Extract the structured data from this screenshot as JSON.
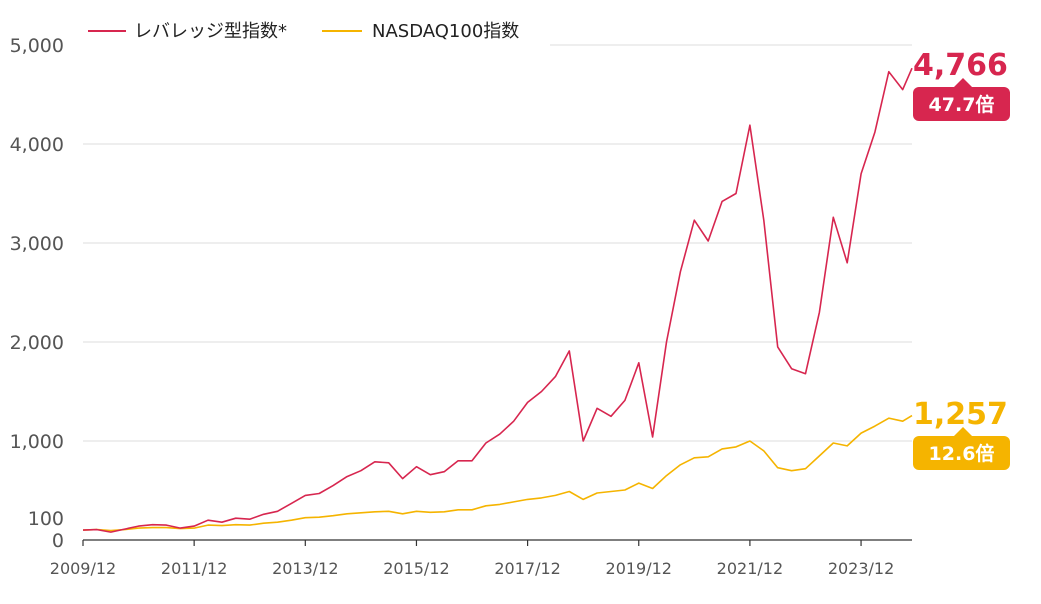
{
  "chart_data": {
    "type": "line",
    "x_start": "2009/12",
    "x_ticks": [
      "2009/12",
      "2011/12",
      "2013/12",
      "2015/12",
      "2017/12",
      "2019/12",
      "2021/12",
      "2023/12"
    ],
    "y_ticks": [
      0,
      100,
      1000,
      2000,
      3000,
      4000,
      5000
    ],
    "y_tick_labels": [
      "0",
      "100",
      "1,000",
      "2,000",
      "3,000",
      "4,000",
      "5,000"
    ],
    "ylim": [
      0,
      5000
    ],
    "grid": "horizontal",
    "legend": "top-left",
    "series": [
      {
        "name": "レバレッジ型指数*",
        "color": "#d7264f",
        "end_label": "4,766",
        "multiple_label": "47.7倍",
        "points": [
          [
            "2009/12",
            100
          ],
          [
            "2010/03",
            105
          ],
          [
            "2010/06",
            80
          ],
          [
            "2010/09",
            110
          ],
          [
            "2010/12",
            140
          ],
          [
            "2011/03",
            155
          ],
          [
            "2011/06",
            150
          ],
          [
            "2011/09",
            120
          ],
          [
            "2011/12",
            140
          ],
          [
            "2012/03",
            200
          ],
          [
            "2012/06",
            180
          ],
          [
            "2012/09",
            220
          ],
          [
            "2012/12",
            210
          ],
          [
            "2013/03",
            260
          ],
          [
            "2013/06",
            290
          ],
          [
            "2013/09",
            370
          ],
          [
            "2013/12",
            450
          ],
          [
            "2014/03",
            470
          ],
          [
            "2014/06",
            550
          ],
          [
            "2014/09",
            640
          ],
          [
            "2014/12",
            700
          ],
          [
            "2015/03",
            790
          ],
          [
            "2015/06",
            780
          ],
          [
            "2015/09",
            620
          ],
          [
            "2015/12",
            740
          ],
          [
            "2016/03",
            660
          ],
          [
            "2016/06",
            690
          ],
          [
            "2016/09",
            800
          ],
          [
            "2016/12",
            800
          ],
          [
            "2017/03",
            980
          ],
          [
            "2017/06",
            1070
          ],
          [
            "2017/09",
            1200
          ],
          [
            "2017/12",
            1390
          ],
          [
            "2018/03",
            1500
          ],
          [
            "2018/06",
            1650
          ],
          [
            "2018/09",
            1910
          ],
          [
            "2018/12",
            1000
          ],
          [
            "2019/03",
            1330
          ],
          [
            "2019/06",
            1250
          ],
          [
            "2019/09",
            1410
          ],
          [
            "2019/12",
            1790
          ],
          [
            "2020/03",
            1040
          ],
          [
            "2020/06",
            2000
          ],
          [
            "2020/09",
            2710
          ],
          [
            "2020/12",
            3230
          ],
          [
            "2021/03",
            3020
          ],
          [
            "2021/06",
            3420
          ],
          [
            "2021/09",
            3500
          ],
          [
            "2021/12",
            4190
          ],
          [
            "2022/03",
            3230
          ],
          [
            "2022/06",
            1950
          ],
          [
            "2022/09",
            1730
          ],
          [
            "2022/12",
            1680
          ],
          [
            "2023/03",
            2300
          ],
          [
            "2023/06",
            3260
          ],
          [
            "2023/09",
            2800
          ],
          [
            "2023/12",
            3700
          ],
          [
            "2024/03",
            4120
          ],
          [
            "2024/06",
            4730
          ],
          [
            "2024/09",
            4550
          ],
          [
            "2024/11",
            4766
          ]
        ]
      },
      {
        "name": "NASDAQ100指数",
        "color": "#f5b400",
        "end_label": "1,257",
        "multiple_label": "12.6倍",
        "points": [
          [
            "2009/12",
            100
          ],
          [
            "2010/03",
            105
          ],
          [
            "2010/06",
            95
          ],
          [
            "2010/09",
            105
          ],
          [
            "2010/12",
            120
          ],
          [
            "2011/03",
            125
          ],
          [
            "2011/06",
            125
          ],
          [
            "2011/09",
            115
          ],
          [
            "2011/12",
            120
          ],
          [
            "2012/03",
            150
          ],
          [
            "2012/06",
            145
          ],
          [
            "2012/09",
            155
          ],
          [
            "2012/12",
            150
          ],
          [
            "2013/03",
            170
          ],
          [
            "2013/06",
            180
          ],
          [
            "2013/09",
            200
          ],
          [
            "2013/12",
            225
          ],
          [
            "2014/03",
            230
          ],
          [
            "2014/06",
            245
          ],
          [
            "2014/09",
            265
          ],
          [
            "2014/12",
            275
          ],
          [
            "2015/03",
            285
          ],
          [
            "2015/06",
            290
          ],
          [
            "2015/09",
            265
          ],
          [
            "2015/12",
            290
          ],
          [
            "2016/03",
            280
          ],
          [
            "2016/06",
            285
          ],
          [
            "2016/09",
            305
          ],
          [
            "2016/12",
            305
          ],
          [
            "2017/03",
            345
          ],
          [
            "2017/06",
            360
          ],
          [
            "2017/09",
            385
          ],
          [
            "2017/12",
            410
          ],
          [
            "2018/03",
            425
          ],
          [
            "2018/06",
            450
          ],
          [
            "2018/09",
            490
          ],
          [
            "2018/12",
            410
          ],
          [
            "2019/03",
            475
          ],
          [
            "2019/06",
            490
          ],
          [
            "2019/09",
            505
          ],
          [
            "2019/12",
            575
          ],
          [
            "2020/03",
            520
          ],
          [
            "2020/06",
            650
          ],
          [
            "2020/09",
            760
          ],
          [
            "2020/12",
            830
          ],
          [
            "2021/03",
            840
          ],
          [
            "2021/06",
            920
          ],
          [
            "2021/09",
            940
          ],
          [
            "2021/12",
            1000
          ],
          [
            "2022/03",
            900
          ],
          [
            "2022/06",
            730
          ],
          [
            "2022/09",
            700
          ],
          [
            "2022/12",
            720
          ],
          [
            "2023/03",
            850
          ],
          [
            "2023/06",
            980
          ],
          [
            "2023/09",
            950
          ],
          [
            "2023/12",
            1080
          ],
          [
            "2024/03",
            1150
          ],
          [
            "2024/06",
            1230
          ],
          [
            "2024/09",
            1200
          ],
          [
            "2024/11",
            1257
          ]
        ]
      }
    ]
  }
}
